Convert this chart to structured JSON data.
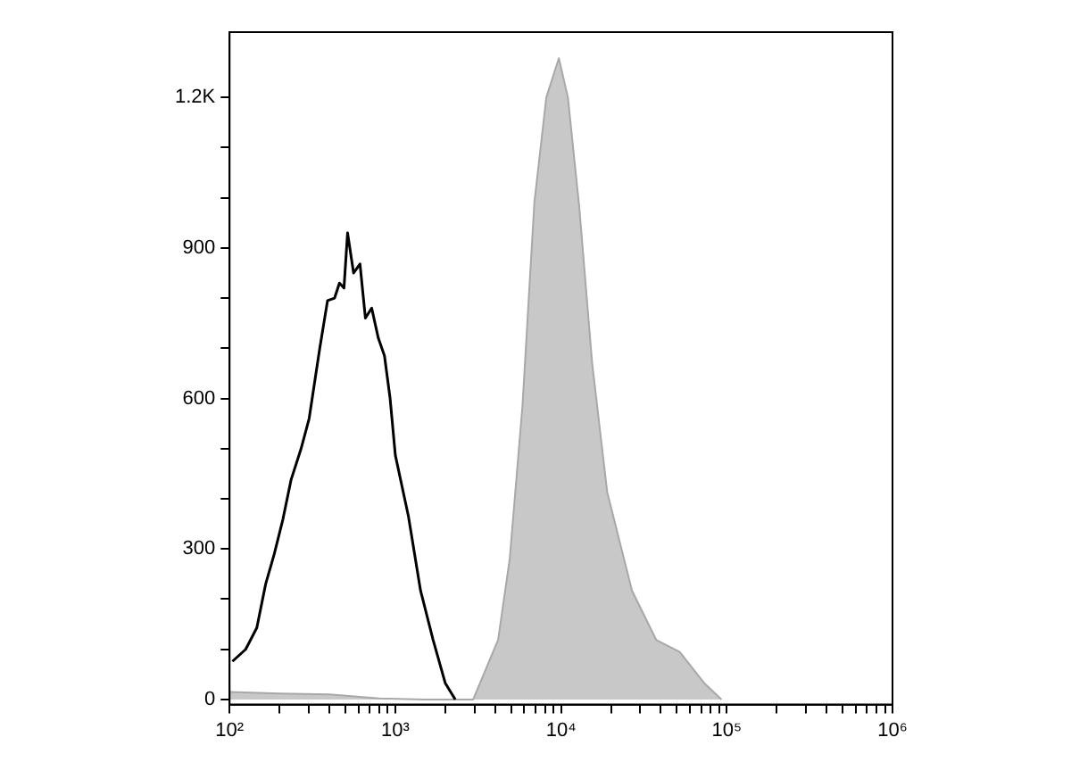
{
  "chart_data": {
    "type": "line",
    "log": "x",
    "grid": false,
    "legend": false,
    "xlim": [
      100,
      1000000
    ],
    "xticks": [
      {
        "value": 100,
        "label": "10²"
      },
      {
        "value": 200,
        "label": null
      },
      {
        "value": 300,
        "label": null
      },
      {
        "value": 400,
        "label": null
      },
      {
        "value": 500,
        "label": null
      },
      {
        "value": 600,
        "label": null
      },
      {
        "value": 700,
        "label": null
      },
      {
        "value": 800,
        "label": null
      },
      {
        "value": 900,
        "label": null
      },
      {
        "value": 1000,
        "label": "10³"
      },
      {
        "value": 2000,
        "label": null
      },
      {
        "value": 3000,
        "label": null
      },
      {
        "value": 4000,
        "label": null
      },
      {
        "value": 5000,
        "label": null
      },
      {
        "value": 6000,
        "label": null
      },
      {
        "value": 7000,
        "label": null
      },
      {
        "value": 8000,
        "label": null
      },
      {
        "value": 9000,
        "label": null
      },
      {
        "value": 10000,
        "label": "10⁴"
      },
      {
        "value": 20000,
        "label": null
      },
      {
        "value": 30000,
        "label": null
      },
      {
        "value": 40000,
        "label": null
      },
      {
        "value": 50000,
        "label": null
      },
      {
        "value": 60000,
        "label": null
      },
      {
        "value": 70000,
        "label": null
      },
      {
        "value": 80000,
        "label": null
      },
      {
        "value": 90000,
        "label": null
      },
      {
        "value": 100000,
        "label": "10⁵"
      },
      {
        "value": 200000,
        "label": null
      },
      {
        "value": 300000,
        "label": null
      },
      {
        "value": 400000,
        "label": null
      },
      {
        "value": 500000,
        "label": null
      },
      {
        "value": 600000,
        "label": null
      },
      {
        "value": 700000,
        "label": null
      },
      {
        "value": 800000,
        "label": null
      },
      {
        "value": 900000,
        "label": null
      },
      {
        "value": 1000000,
        "label": "10⁶"
      }
    ],
    "ylim": [
      -10,
      1330
    ],
    "yticks": [
      0,
      {
        "value": 100,
        "label": null
      },
      {
        "value": 200,
        "label": null
      },
      300,
      {
        "value": 400,
        "label": null
      },
      {
        "value": 500,
        "label": null
      },
      600,
      {
        "value": 700,
        "label": null
      },
      {
        "value": 800,
        "label": null
      },
      900,
      {
        "value": 1000,
        "label": null
      },
      {
        "value": 1100,
        "label": null
      },
      {
        "value": 1200,
        "label": "1.2K"
      }
    ],
    "series": [
      {
        "type": "area",
        "color": "#c8c8c8",
        "x": [
          100,
          200,
          400,
          800,
          1500,
          2950,
          4170,
          4900,
          5850,
          6900,
          8150,
          9700,
          11000,
          12900,
          15400,
          19000,
          26800,
          37500,
          52000,
          73000,
          93000
        ],
        "values": [
          15,
          12,
          10,
          2,
          0,
          0,
          119,
          280,
          585,
          990,
          1200,
          1278,
          1200,
          979,
          671,
          413,
          217,
          119,
          95,
          33,
          0
        ]
      },
      {
        "type": "line",
        "color": "#000000",
        "x": [
          104,
          125,
          146,
          165,
          186,
          210,
          235,
          270,
          302,
          350,
          390,
          430,
          460,
          490,
          515,
          560,
          612,
          660,
          720,
          790,
          860,
          930,
          1000,
          1200,
          1420,
          1690,
          2000,
          2300
        ],
        "values": [
          76,
          100,
          143,
          230,
          290,
          360,
          438,
          500,
          560,
          700,
          795,
          800,
          830,
          820,
          930,
          850,
          868,
          760,
          780,
          720,
          685,
          600,
          487,
          365,
          217,
          119,
          33,
          0
        ]
      }
    ]
  }
}
